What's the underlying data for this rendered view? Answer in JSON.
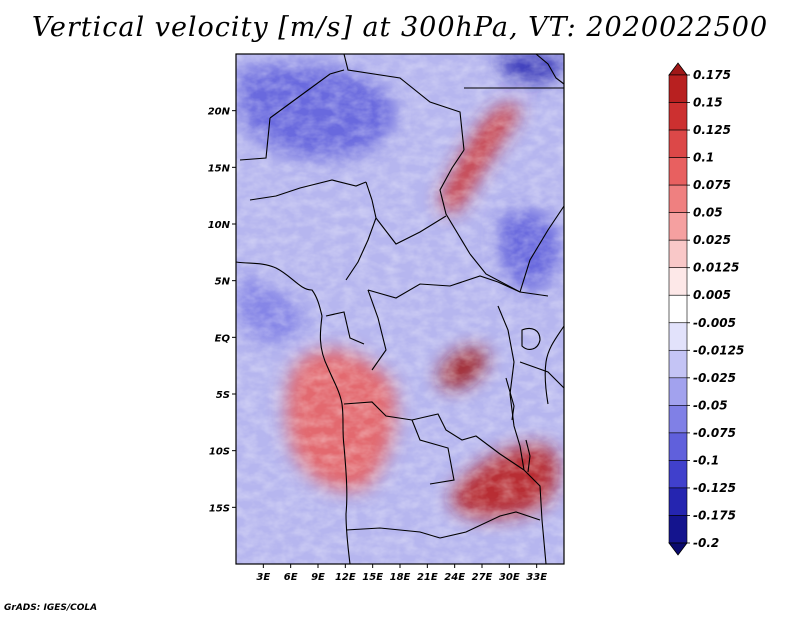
{
  "title": "Vertical velocity [m/s] at 300hPa, VT: 2020022500",
  "credit": "GrADS: IGES/COLA",
  "map": {
    "lon_range": [
      0,
      36
    ],
    "lat_range": [
      -20,
      25
    ],
    "x_ticks": [
      "3E",
      "6E",
      "9E",
      "12E",
      "15E",
      "18E",
      "21E",
      "24E",
      "27E",
      "30E",
      "33E"
    ],
    "x_tick_values": [
      3,
      6,
      9,
      12,
      15,
      18,
      21,
      24,
      27,
      30,
      33
    ],
    "y_ticks": [
      "20N",
      "15N",
      "10N",
      "5N",
      "EQ",
      "5S",
      "10S",
      "15S"
    ],
    "y_tick_values": [
      20,
      15,
      10,
      5,
      0,
      -5,
      -10,
      -15
    ]
  },
  "colorbar": {
    "labels": [
      "0.175",
      "0.15",
      "0.125",
      "0.1",
      "0.075",
      "0.05",
      "0.025",
      "0.0125",
      "0.005",
      "-0.005",
      "-0.0125",
      "-0.025",
      "-0.05",
      "-0.075",
      "-0.1",
      "-0.125",
      "-0.175",
      "-0.2"
    ],
    "colors": [
      "#a01818",
      "#b82020",
      "#cc3030",
      "#dc4848",
      "#e86060",
      "#ef8080",
      "#f5a0a0",
      "#f9c8c8",
      "#fde8e8",
      "#ffffff",
      "#e2e2fb",
      "#c4c4f5",
      "#a2a2ee",
      "#8080e6",
      "#6060dc",
      "#4040cc",
      "#2525b0",
      "#14148e",
      "#0a0a6e"
    ]
  },
  "features": [
    {
      "name": "red-feature-sahel-band",
      "sign": "positive",
      "strength": 0.13
    },
    {
      "name": "red-feature-congo-blob",
      "sign": "positive",
      "strength": 0.175
    },
    {
      "name": "red-feature-angola-coast",
      "sign": "positive",
      "strength": 0.075
    },
    {
      "name": "red-feature-southern-africa",
      "sign": "positive",
      "strength": 0.15
    },
    {
      "name": "blue-feature-sahara",
      "sign": "negative",
      "strength": -0.1
    },
    {
      "name": "blue-feature-northeast-corner",
      "sign": "negative",
      "strength": -0.175
    },
    {
      "name": "blue-feature-gulf-of-guinea",
      "sign": "negative",
      "strength": -0.075
    },
    {
      "name": "blue-feature-east-africa",
      "sign": "negative",
      "strength": -0.1
    }
  ]
}
